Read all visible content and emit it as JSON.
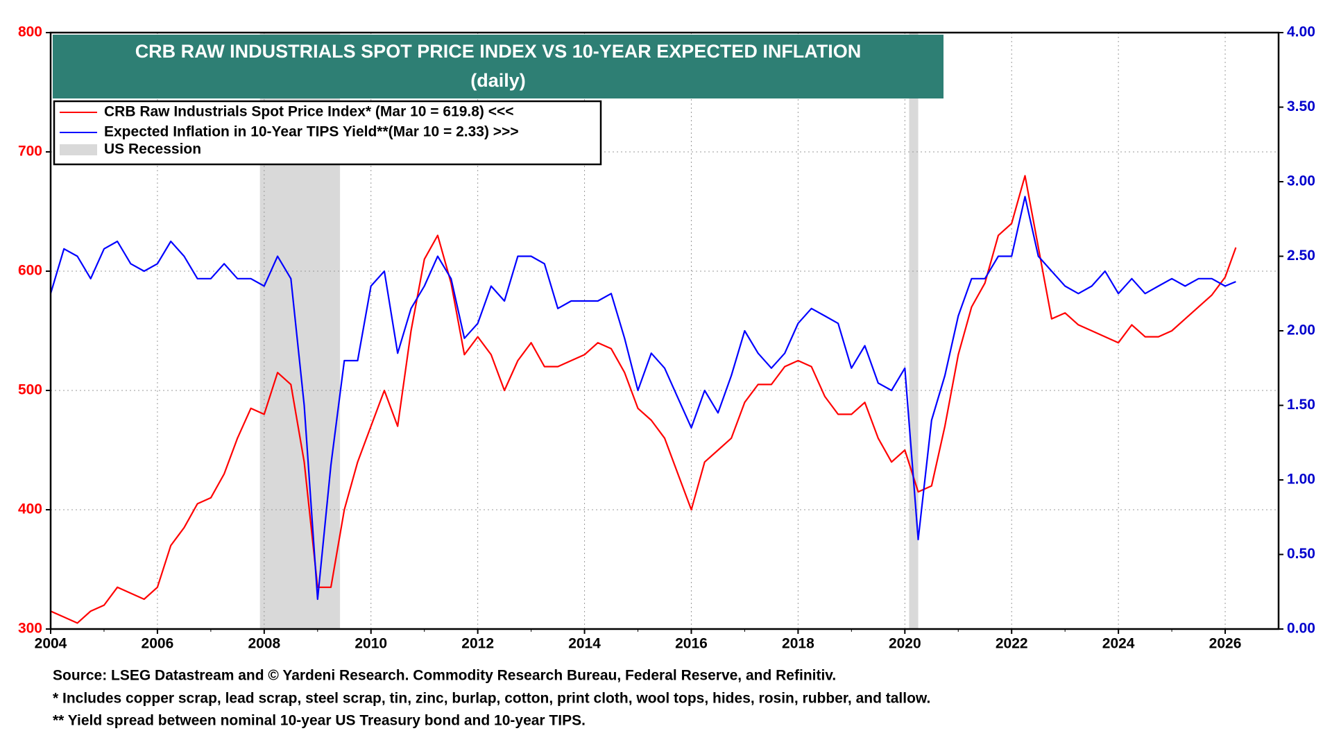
{
  "chart_data": {
    "type": "line",
    "title": "CRB RAW INDUSTRIALS SPOT PRICE INDEX VS 10-YEAR EXPECTED INFLATION",
    "subtitle": "(daily)",
    "notes": [
      "Source: LSEG Datastream and © Yardeni Research. Commodity Research Bureau, Federal Reserve, and Refinitiv.",
      "* Includes copper scrap, lead scrap, steel scrap, tin, zinc, burlap, cotton, print cloth, wool tops, hides, rosin, rubber, and tallow.",
      "** Yield spread between nominal 10-year US Treasury bond and 10-year TIPS."
    ],
    "x": [
      2004,
      2004.25,
      2004.5,
      2004.75,
      2005,
      2005.25,
      2005.5,
      2005.75,
      2006,
      2006.25,
      2006.5,
      2006.75,
      2007,
      2007.25,
      2007.5,
      2007.75,
      2008,
      2008.25,
      2008.5,
      2008.75,
      2009,
      2009.25,
      2009.5,
      2009.75,
      2010,
      2010.25,
      2010.5,
      2010.75,
      2011,
      2011.25,
      2011.5,
      2011.75,
      2012,
      2012.25,
      2012.5,
      2012.75,
      2013,
      2013.25,
      2013.5,
      2013.75,
      2014,
      2014.25,
      2014.5,
      2014.75,
      2015,
      2015.25,
      2015.5,
      2015.75,
      2016,
      2016.25,
      2016.5,
      2016.75,
      2017,
      2017.25,
      2017.5,
      2017.75,
      2018,
      2018.25,
      2018.5,
      2018.75,
      2019,
      2019.25,
      2019.5,
      2019.75,
      2020,
      2020.25,
      2020.5,
      2020.75,
      2021,
      2021.25,
      2021.5,
      2021.75,
      2022,
      2022.25,
      2022.5,
      2022.75,
      2023,
      2023.25,
      2023.5,
      2023.75,
      2024,
      2024.25,
      2024.5,
      2024.75,
      2025,
      2025.25,
      2025.5,
      2025.75,
      2026,
      2026.2
    ],
    "series": [
      {
        "name": "CRB Raw Industrials Spot Price Index* (Mar 10 = 619.8) <<<",
        "color": "#ff0000",
        "axis": "y",
        "values": [
          315,
          310,
          305,
          315,
          320,
          335,
          330,
          325,
          335,
          370,
          385,
          405,
          410,
          430,
          460,
          485,
          480,
          515,
          505,
          440,
          335,
          335,
          400,
          440,
          470,
          500,
          470,
          550,
          610,
          630,
          590,
          530,
          545,
          530,
          500,
          525,
          540,
          520,
          520,
          525,
          530,
          540,
          535,
          515,
          485,
          475,
          460,
          430,
          400,
          440,
          450,
          460,
          490,
          505,
          505,
          520,
          525,
          520,
          495,
          480,
          480,
          490,
          460,
          440,
          450,
          415,
          420,
          470,
          530,
          570,
          590,
          630,
          640,
          680,
          620,
          560,
          565,
          555,
          550,
          545,
          540,
          555,
          545,
          545,
          550,
          560,
          570,
          580,
          595,
          619.8
        ]
      },
      {
        "name": "Expected Inflation in 10-Year TIPS Yield**(Mar 10 = 2.33) >>>",
        "color": "#0000ff",
        "axis": "y2",
        "values": [
          2.25,
          2.55,
          2.5,
          2.35,
          2.55,
          2.6,
          2.45,
          2.4,
          2.45,
          2.6,
          2.5,
          2.35,
          2.35,
          2.45,
          2.35,
          2.35,
          2.3,
          2.5,
          2.35,
          1.5,
          0.2,
          1.1,
          1.8,
          1.8,
          2.3,
          2.4,
          1.85,
          2.15,
          2.3,
          2.5,
          2.35,
          1.95,
          2.05,
          2.3,
          2.2,
          2.5,
          2.5,
          2.45,
          2.15,
          2.2,
          2.2,
          2.2,
          2.25,
          1.95,
          1.6,
          1.85,
          1.75,
          1.55,
          1.35,
          1.6,
          1.45,
          1.7,
          2.0,
          1.85,
          1.75,
          1.85,
          2.05,
          2.15,
          2.1,
          2.05,
          1.75,
          1.9,
          1.65,
          1.6,
          1.75,
          0.6,
          1.4,
          1.7,
          2.1,
          2.35,
          2.35,
          2.5,
          2.5,
          2.9,
          2.5,
          2.4,
          2.3,
          2.25,
          2.3,
          2.4,
          2.25,
          2.35,
          2.25,
          2.3,
          2.35,
          2.3,
          2.35,
          2.35,
          2.3,
          2.33
        ]
      }
    ],
    "recession_name": "US Recession",
    "recession_color": "#d9d9d9",
    "recessions": [
      [
        2007.92,
        2009.42
      ],
      [
        2020.08,
        2020.25
      ]
    ],
    "xlim": [
      2004,
      2027
    ],
    "xticks": [
      2004,
      2006,
      2008,
      2010,
      2012,
      2014,
      2016,
      2018,
      2020,
      2022,
      2024,
      2026
    ],
    "ylim": [
      300,
      800
    ],
    "yticks": [
      300,
      400,
      500,
      600,
      700,
      800
    ],
    "y2lim": [
      0,
      4
    ],
    "y2ticks": [
      {
        "value": 0,
        "label": "0.00"
      },
      {
        "value": 0.5,
        "label": "0.50"
      },
      {
        "value": 1,
        "label": "1.00"
      },
      {
        "value": 1.5,
        "label": "1.50"
      },
      {
        "value": 2,
        "label": "2.00"
      },
      {
        "value": 2.5,
        "label": "2.50"
      },
      {
        "value": 3,
        "label": "3.00"
      },
      {
        "value": 3.5,
        "label": "3.50"
      },
      {
        "value": 4,
        "label": "4.00"
      }
    ],
    "grid": true
  }
}
